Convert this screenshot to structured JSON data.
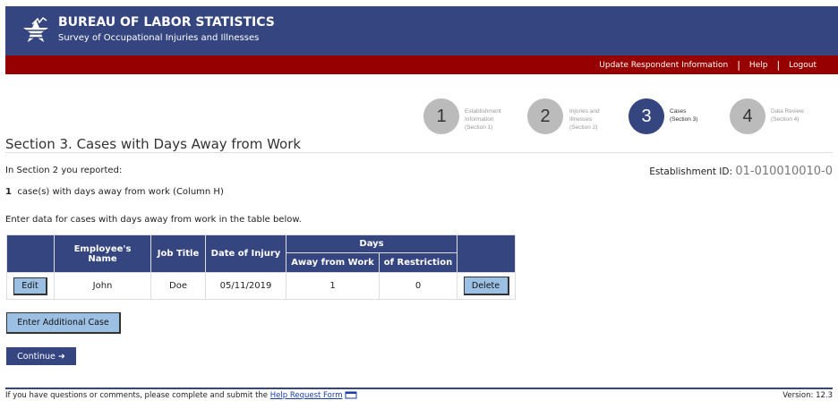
{
  "header": {
    "title": "BUREAU OF LABOR STATISTICS",
    "subtitle": "Survey of Occupational Injuries and Illnesses"
  },
  "nav": {
    "update": "Update Respondent Information",
    "help": "Help",
    "logout": "Logout",
    "separator": "|"
  },
  "steps": [
    {
      "num": "1",
      "line1": "Establishment",
      "line2": "Information",
      "line3": "(Section 1)"
    },
    {
      "num": "2",
      "line1": "Injuries and",
      "line2": "Illnesses",
      "line3": "(Section 2)"
    },
    {
      "num": "3",
      "line1": "Cases",
      "line2": "(Section 3)",
      "line3": "",
      "active": true
    },
    {
      "num": "4",
      "line1": "Data Review",
      "line2": "(Section 4)",
      "line3": ""
    }
  ],
  "page_title": "Section 3. Cases with Days Away from Work",
  "reported": "In Section 2 you reported:",
  "establishment_label": "Establishment ID:",
  "establishment_id": "01-010010010-0",
  "cases_count": "1",
  "cases_text": "case(s) with days away from work (Column H)",
  "instructions": "Enter data for cases with days away from work in the table below.",
  "table": {
    "headers": {
      "name": "Employee's Name",
      "job": "Job Title",
      "date": "Date of Injury",
      "days": "Days",
      "away": "Away from Work",
      "restriction": "of Restriction"
    },
    "rows": [
      {
        "edit": "Edit",
        "name": "John",
        "job": "Doe",
        "date": "05/11/2019",
        "away": "1",
        "restriction": "0",
        "delete": "Delete"
      }
    ]
  },
  "buttons": {
    "add": "Enter Additional Case",
    "continue": "Continue ➜"
  },
  "footer": {
    "text": "If you have questions or comments, please complete and submit the",
    "link": "Help Request Form",
    "version": "Version: 12.3"
  },
  "colors": {
    "brand": "#34457f",
    "red": "#960000",
    "button": "#9cc0e3"
  }
}
